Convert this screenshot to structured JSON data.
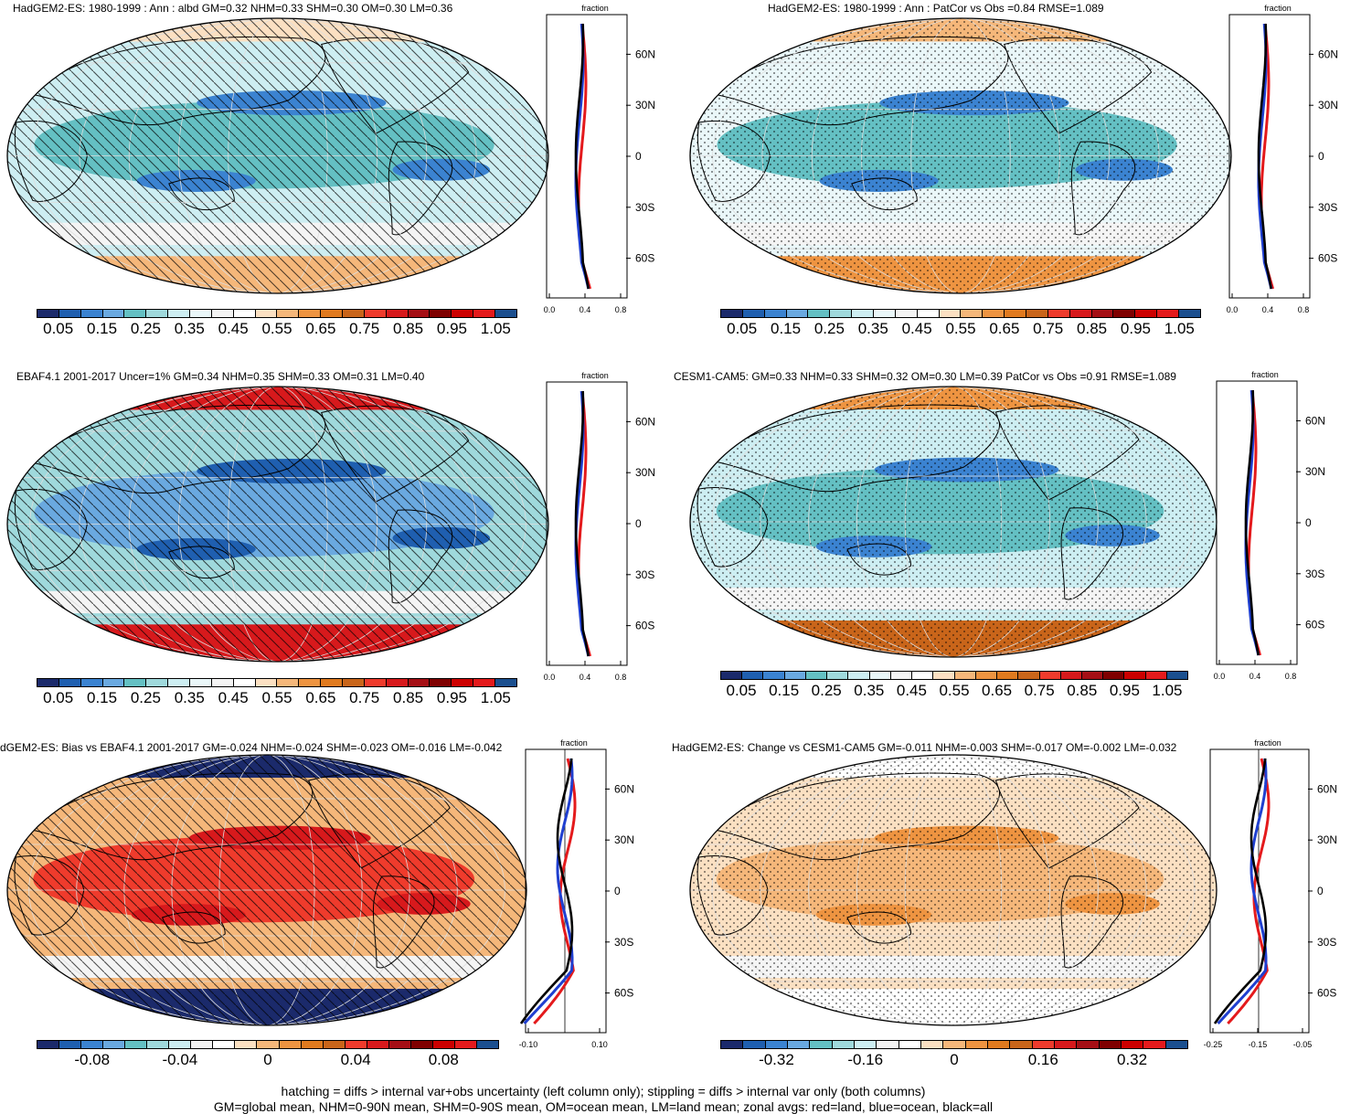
{
  "panels": [
    {
      "id": "p1",
      "title": "HadGEM2-ES: 1980-1999 : Ann : albd GM=0.32 NHM=0.33 SHM=0.30 OM=0.30 LM=0.36",
      "overlay": "hatch",
      "colorbar": "abs",
      "zonal_axis_label": "fraction",
      "zonal_ticks": [
        "0.0",
        "0.4",
        "0.8"
      ]
    },
    {
      "id": "p2",
      "title": "HadGEM2-ES: 1980-1999 : Ann : PatCor vs Obs =0.84 RMSE=1.089",
      "overlay": "stipple",
      "colorbar": "abs",
      "zonal_axis_label": "fraction",
      "zonal_ticks": [
        "0.0",
        "0.4",
        "0.8"
      ]
    },
    {
      "id": "p3",
      "title": "EBAF4.1 2001-2017 Uncer=1% GM=0.34 NHM=0.35 SHM=0.33 OM=0.31 LM=0.40",
      "overlay": "hatch",
      "colorbar": "abs",
      "zonal_axis_label": "fraction",
      "zonal_ticks": [
        "0.0",
        "0.4",
        "0.8"
      ]
    },
    {
      "id": "p4",
      "title": "CESM1-CAM5: GM=0.33 NHM=0.33 SHM=0.32 OM=0.30 LM=0.39 PatCor vs Obs =0.91 RMSE=1.089",
      "overlay": "stipple",
      "colorbar": "abs",
      "zonal_axis_label": "fraction",
      "zonal_ticks": [
        "0.0",
        "0.4",
        "0.8"
      ]
    },
    {
      "id": "p5",
      "title": "dGEM2-ES: Bias vs EBAF4.1 2001-2017 GM=-0.024 NHM=-0.024 SHM=-0.023 OM=-0.016 LM=-0.042",
      "overlay": "hatch",
      "colorbar": "bias",
      "zonal_axis_label": "fraction",
      "zonal_ticks": [
        "-0.10",
        "0.10"
      ]
    },
    {
      "id": "p6",
      "title": "HadGEM2-ES: Change vs CESM1-CAM5 GM=-0.011 NHM=-0.003 SHM=-0.017 OM=-0.002 LM=-0.032",
      "overlay": "stipple",
      "colorbar": "change",
      "zonal_axis_label": "fraction",
      "zonal_ticks": [
        "-0.25",
        "-0.15",
        "-0.05"
      ]
    }
  ],
  "latitude_labels": [
    "60N",
    "30N",
    "0",
    "30S",
    "60S"
  ],
  "colorbars": {
    "abs": {
      "labels": [
        "0.05",
        "0.15",
        "0.25",
        "0.35",
        "0.45",
        "0.55",
        "0.65",
        "0.75",
        "0.85",
        "0.95",
        "1.05"
      ],
      "colors": [
        "#1b2a6b",
        "#1f5fb0",
        "#3b83d1",
        "#6aa9e0",
        "#64c0c3",
        "#9fd9dc",
        "#cdeef2",
        "#eaf7f9",
        "#f4f4f4",
        "#ffffff",
        "#fbe0c2",
        "#f5b77a",
        "#ee9441",
        "#e07a1f",
        "#c9651a",
        "#ef3b2c",
        "#d7191c",
        "#a50f15",
        "#7f0000",
        "#cc0000",
        "#e41a1c",
        "#1b4f8f"
      ]
    },
    "bias": {
      "labels": [
        "-0.08",
        "-0.04",
        "0",
        "0.04",
        "0.08"
      ],
      "colors": [
        "#1b2a6b",
        "#1f5fb0",
        "#3b83d1",
        "#6aa9e0",
        "#64c0c3",
        "#9fd9dc",
        "#cdeef2",
        "#f4f4f4",
        "#ffffff",
        "#fbe0c2",
        "#f5b77a",
        "#ee9441",
        "#e07a1f",
        "#c9651a",
        "#ef3b2c",
        "#d7191c",
        "#a50f15",
        "#7f0000",
        "#cc0000",
        "#e41a1c",
        "#1b4f8f"
      ]
    },
    "change": {
      "labels": [
        "-0.32",
        "-0.16",
        "0",
        "0.16",
        "0.32"
      ],
      "colors": [
        "#1b2a6b",
        "#1f5fb0",
        "#3b83d1",
        "#6aa9e0",
        "#64c0c3",
        "#9fd9dc",
        "#cdeef2",
        "#f4f4f4",
        "#ffffff",
        "#fbe0c2",
        "#f5b77a",
        "#ee9441",
        "#e07a1f",
        "#c9651a",
        "#ef3b2c",
        "#d7191c",
        "#a50f15",
        "#7f0000",
        "#cc0000",
        "#e41a1c",
        "#1b4f8f"
      ]
    }
  },
  "footer": {
    "line1": "hatching = diffs > internal var+obs uncertainty (left column only); stippling = diffs > internal var only (both columns)",
    "line2": "GM=global mean, NHM=0-90N mean, SHM=0-90S mean, OM=ocean mean, LM=land mean; zonal avgs: red=land, blue=ocean, black=all"
  },
  "map_colors": {
    "p1": {
      "base": "#cdeef2",
      "band_tropics": "#64c0c3",
      "band_core": "#3b83d1",
      "polar_south": "#f5b77a",
      "polar_north": "#fbe0c2"
    },
    "p2": {
      "base": "#eaf7f9",
      "band_tropics": "#64c0c3",
      "band_core": "#3b83d1",
      "polar_south": "#ee9441",
      "polar_north": "#f5b77a"
    },
    "p3": {
      "base": "#9fd9dc",
      "band_tropics": "#6aa9e0",
      "band_core": "#1f5fb0",
      "polar_south": "#d7191c",
      "polar_north": "#d7191c"
    },
    "p4": {
      "base": "#cdeef2",
      "band_tropics": "#64c0c3",
      "band_core": "#3b83d1",
      "polar_south": "#c9651a",
      "polar_north": "#ee9441"
    },
    "p5": {
      "base": "#f5b77a",
      "band_tropics": "#ef3b2c",
      "band_core": "#d7191c",
      "polar_south": "#1b2a6b",
      "polar_north": "#1b2a6b"
    },
    "p6": {
      "base": "#fbe0c2",
      "band_tropics": "#f5b77a",
      "band_core": "#ee9441",
      "polar_south": "#ffffff",
      "polar_north": "#ffffff"
    }
  }
}
